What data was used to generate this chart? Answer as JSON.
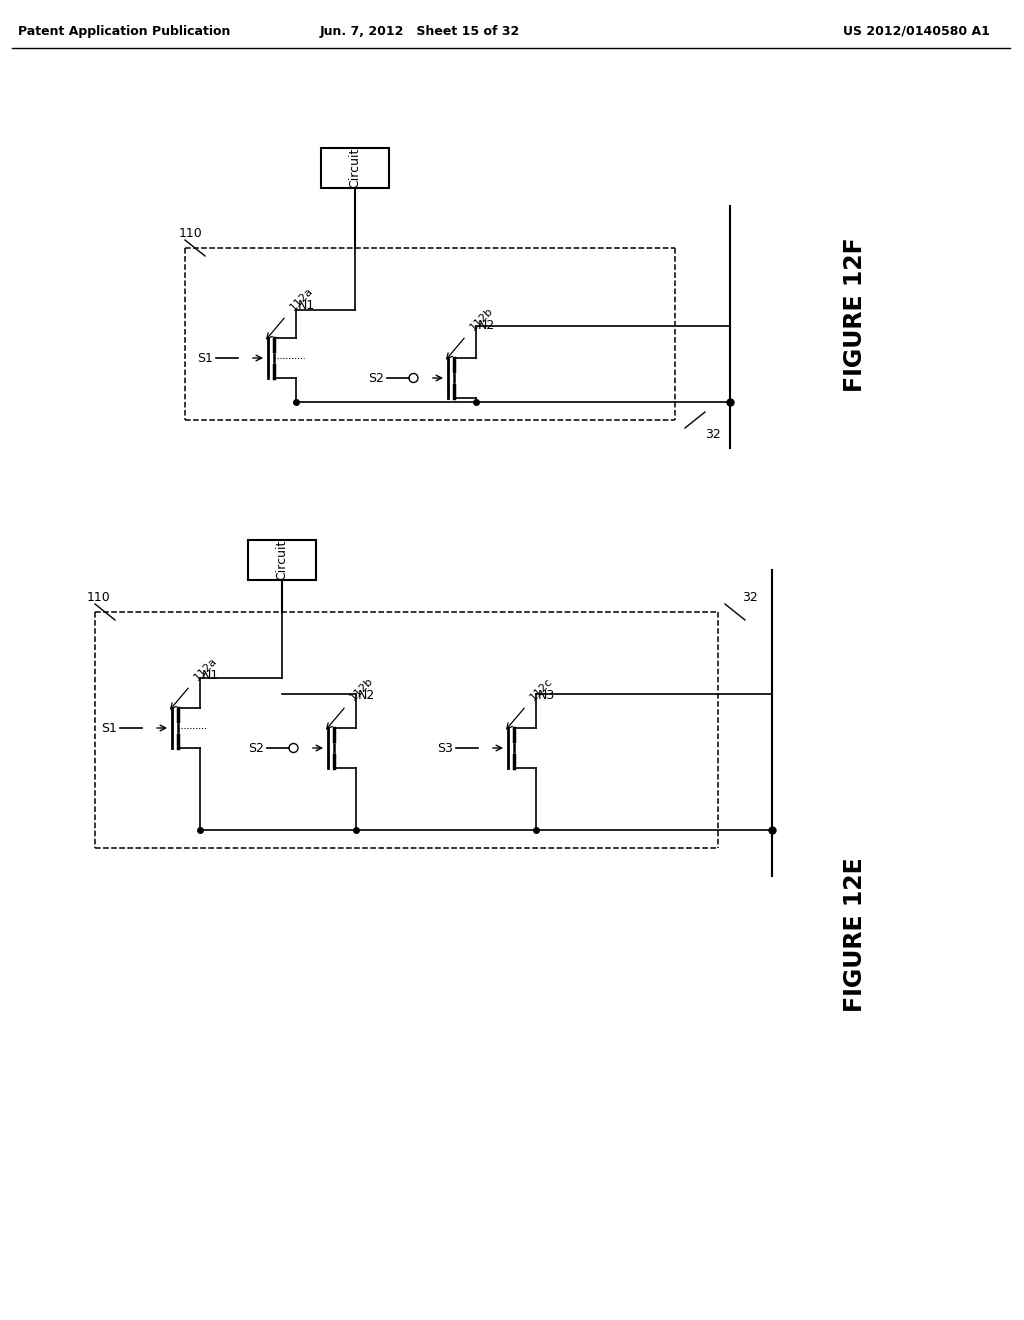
{
  "bg_color": "#ffffff",
  "header_left": "Patent Application Publication",
  "header_mid": "Jun. 7, 2012   Sheet 15 of 32",
  "header_right": "US 2012/0140580 A1"
}
